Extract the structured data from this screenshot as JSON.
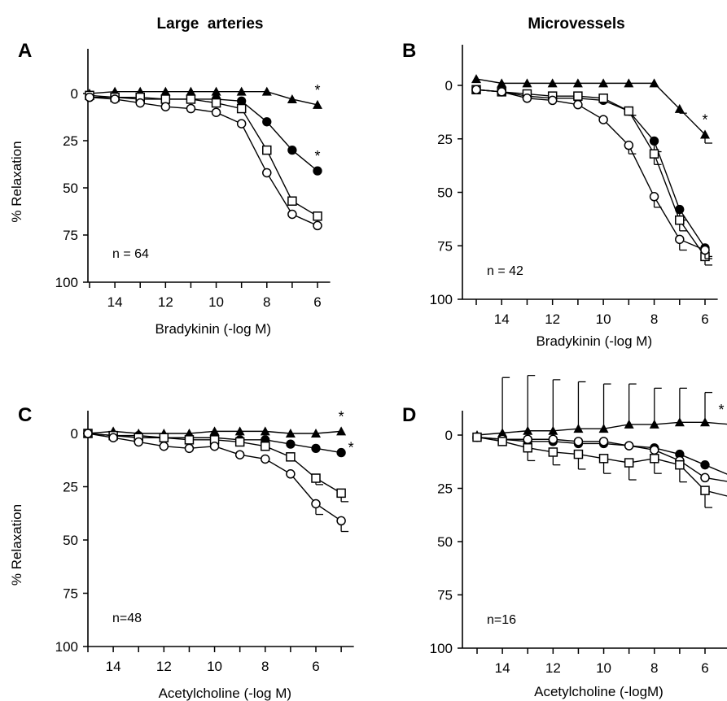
{
  "column_titles": [
    "Large  arteries",
    "Microvessels"
  ],
  "chart_data": [
    {
      "panel": "A",
      "type": "line",
      "xlabel": "Bradykinin (-log M)",
      "ylabel": "% Relaxation",
      "xlim": [
        15,
        5.5
      ],
      "ylim": [
        100,
        -20
      ],
      "x_ticks": [
        "14",
        "12",
        "10",
        "8",
        "6"
      ],
      "y_ticks": [
        "0",
        "25",
        "50",
        "75",
        "100"
      ],
      "n_label": "n = 64",
      "x": [
        15,
        14,
        13,
        12,
        11,
        10,
        9,
        8,
        7,
        6
      ],
      "series": [
        {
          "marker": "filled-triangle",
          "values": [
            0,
            -1,
            -1,
            -1,
            -1,
            -1,
            -1,
            -1,
            3,
            6
          ],
          "errors": [],
          "star": "*"
        },
        {
          "marker": "filled-circle",
          "values": [
            2,
            2,
            3,
            3,
            3,
            3,
            4,
            15,
            30,
            41
          ],
          "errors": [],
          "star": "*"
        },
        {
          "marker": "open-square",
          "values": [
            1,
            2,
            2,
            3,
            3,
            5,
            8,
            30,
            57,
            65
          ],
          "errors": [],
          "star": ""
        },
        {
          "marker": "open-circle",
          "values": [
            2,
            3,
            5,
            7,
            8,
            10,
            16,
            42,
            64,
            70
          ],
          "errors": [],
          "star": ""
        }
      ]
    },
    {
      "panel": "B",
      "type": "line",
      "xlabel": "Bradykinin (-log M)",
      "ylabel": "",
      "xlim": [
        15,
        5.5
      ],
      "ylim": [
        100,
        -20
      ],
      "x_ticks": [
        "14",
        "12",
        "10",
        "8",
        "6"
      ],
      "y_ticks": [
        "0",
        "25",
        "50",
        "75",
        "100"
      ],
      "n_label": "n = 42",
      "x": [
        15,
        14,
        13,
        12,
        11,
        10,
        9,
        8,
        7,
        6
      ],
      "series": [
        {
          "marker": "filled-triangle",
          "values": [
            -3,
            -1,
            -1,
            -1,
            -1,
            -1,
            -1,
            -1,
            11,
            23
          ],
          "errors": [
            0,
            0,
            0,
            0,
            0,
            0,
            0,
            0,
            2,
            4
          ],
          "star": "*"
        },
        {
          "marker": "filled-circle",
          "values": [
            2,
            3,
            5,
            6,
            6,
            7,
            12,
            26,
            58,
            76
          ],
          "errors": [
            0,
            0,
            0,
            0,
            0,
            0,
            2,
            5,
            5,
            4
          ],
          "star": ""
        },
        {
          "marker": "open-square",
          "values": [
            2,
            3,
            4,
            5,
            5,
            6,
            12,
            32,
            63,
            80
          ],
          "errors": [
            0,
            0,
            0,
            0,
            0,
            0,
            2,
            5,
            5,
            4
          ],
          "star": ""
        },
        {
          "marker": "open-circle",
          "values": [
            2,
            3,
            6,
            7,
            9,
            16,
            28,
            52,
            72,
            77
          ],
          "errors": [
            0,
            0,
            0,
            0,
            0,
            0,
            4,
            5,
            5,
            4
          ],
          "star": ""
        }
      ]
    },
    {
      "panel": "C",
      "type": "line",
      "xlabel": "Acetylcholine (-log M)",
      "ylabel": "% Relaxation",
      "xlim": [
        15,
        4.5
      ],
      "ylim": [
        100,
        -20
      ],
      "x_ticks": [
        "14",
        "12",
        "10",
        "8",
        "6"
      ],
      "y_ticks": [
        "0",
        "25",
        "50",
        "75",
        "100"
      ],
      "n_label": "n=48",
      "x": [
        15,
        14,
        13,
        12,
        11,
        10,
        9,
        8,
        7,
        6,
        5
      ],
      "series": [
        {
          "marker": "filled-triangle",
          "values": [
            0,
            -1,
            0,
            0,
            0,
            -1,
            -1,
            -1,
            0,
            0,
            -1
          ],
          "errors": [],
          "star": "*"
        },
        {
          "marker": "filled-circle",
          "values": [
            0,
            1,
            1,
            2,
            2,
            2,
            3,
            3,
            5,
            7,
            9
          ],
          "errors": [],
          "star": "*"
        },
        {
          "marker": "open-square",
          "values": [
            0,
            1,
            2,
            2,
            3,
            3,
            4,
            6,
            11,
            21,
            28
          ],
          "errors": [
            0,
            0,
            0,
            0,
            0,
            0,
            0,
            0,
            0,
            3,
            4
          ],
          "star": ""
        },
        {
          "marker": "open-circle",
          "values": [
            0,
            2,
            4,
            6,
            7,
            6,
            10,
            12,
            19,
            33,
            41
          ],
          "errors": [
            0,
            0,
            0,
            0,
            0,
            0,
            0,
            0,
            0,
            5,
            5
          ],
          "star": ""
        }
      ]
    },
    {
      "panel": "D",
      "type": "line",
      "xlabel": "Acetylcholine (-logM)",
      "ylabel": "",
      "xlim": [
        15,
        5
      ],
      "ylim": [
        100,
        -20
      ],
      "x_ticks": [
        "14",
        "12",
        "10",
        "8",
        "6"
      ],
      "y_ticks": [
        "0",
        "25",
        "50",
        "75",
        "100"
      ],
      "n_label": "n=16",
      "x": [
        15,
        14,
        13,
        12,
        11,
        10,
        9,
        8,
        7,
        6,
        5
      ],
      "series": [
        {
          "marker": "filled-triangle",
          "values": [
            0,
            -1,
            -2,
            -2,
            -3,
            -3,
            -5,
            -5,
            -6,
            -6,
            -5
          ],
          "errors": [
            0,
            26,
            26,
            24,
            22,
            21,
            19,
            17,
            16,
            14,
            12
          ],
          "star": "*"
        },
        {
          "marker": "filled-circle",
          "values": [
            1,
            2,
            3,
            3,
            4,
            4,
            5,
            6,
            9,
            14,
            19
          ],
          "errors": [
            0,
            0,
            0,
            0,
            0,
            0,
            0,
            0,
            0,
            0,
            0
          ],
          "star": ""
        },
        {
          "marker": "open-circle",
          "values": [
            1,
            2,
            2,
            2,
            3,
            3,
            5,
            7,
            12,
            20,
            22
          ],
          "errors": [
            0,
            0,
            0,
            0,
            0,
            0,
            0,
            0,
            0,
            0,
            0
          ],
          "star": ""
        },
        {
          "marker": "open-square",
          "values": [
            1,
            3,
            6,
            8,
            9,
            11,
            13,
            11,
            14,
            26,
            29
          ],
          "errors": [
            0,
            0,
            6,
            6,
            7,
            7,
            8,
            7,
            8,
            8,
            6
          ],
          "star": ""
        }
      ]
    }
  ]
}
